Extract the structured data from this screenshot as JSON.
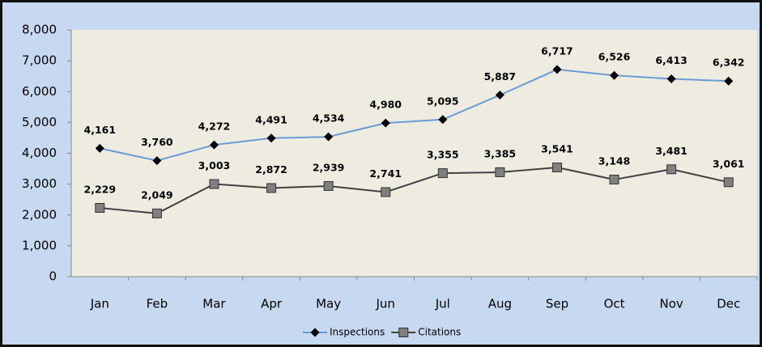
{
  "chart_data": {
    "type": "line",
    "categories": [
      "Jan",
      "Feb",
      "Mar",
      "Apr",
      "May",
      "Jun",
      "Jul",
      "Aug",
      "Sep",
      "Oct",
      "Nov",
      "Dec"
    ],
    "series": [
      {
        "name": "Inspections",
        "color": "#6b9bd7",
        "marker_color": "#000000",
        "marker": "diamond",
        "values": [
          4161,
          3760,
          4272,
          4491,
          4534,
          4980,
          5095,
          5887,
          6717,
          6526,
          6413,
          6342
        ],
        "value_labels": [
          "4,161",
          "3,760",
          "4,272",
          "4,491",
          "4,534",
          "4,980",
          "5,095",
          "5,887",
          "6,717",
          "6,526",
          "6,413",
          "6,342"
        ]
      },
      {
        "name": "Citations",
        "color": "#404040",
        "marker_color": "#7f7f7f",
        "marker": "square",
        "values": [
          2229,
          2049,
          3003,
          2872,
          2939,
          2741,
          3355,
          3385,
          3541,
          3148,
          3481,
          3061
        ],
        "value_labels": [
          "2,229",
          "2,049",
          "3,003",
          "2,872",
          "2,939",
          "2,741",
          "3,355",
          "3,385",
          "3,541",
          "3,148",
          "3,481",
          "3,061"
        ]
      }
    ],
    "ylim": [
      0,
      8000
    ],
    "yticks": [
      0,
      {
        "value": 1000,
        "label": "1,000"
      },
      {
        "value": 2000,
        "label": "2,000"
      },
      {
        "value": 3000,
        "label": "3,000"
      },
      {
        "value": 4000,
        "label": "4,000"
      },
      {
        "value": 5000,
        "label": "5,000"
      },
      {
        "value": 6000,
        "label": "6,000"
      },
      {
        "value": 7000,
        "label": "7,000"
      },
      {
        "value": 8000,
        "label": "8,000"
      }
    ],
    "grid": false,
    "legend": "bottom"
  }
}
